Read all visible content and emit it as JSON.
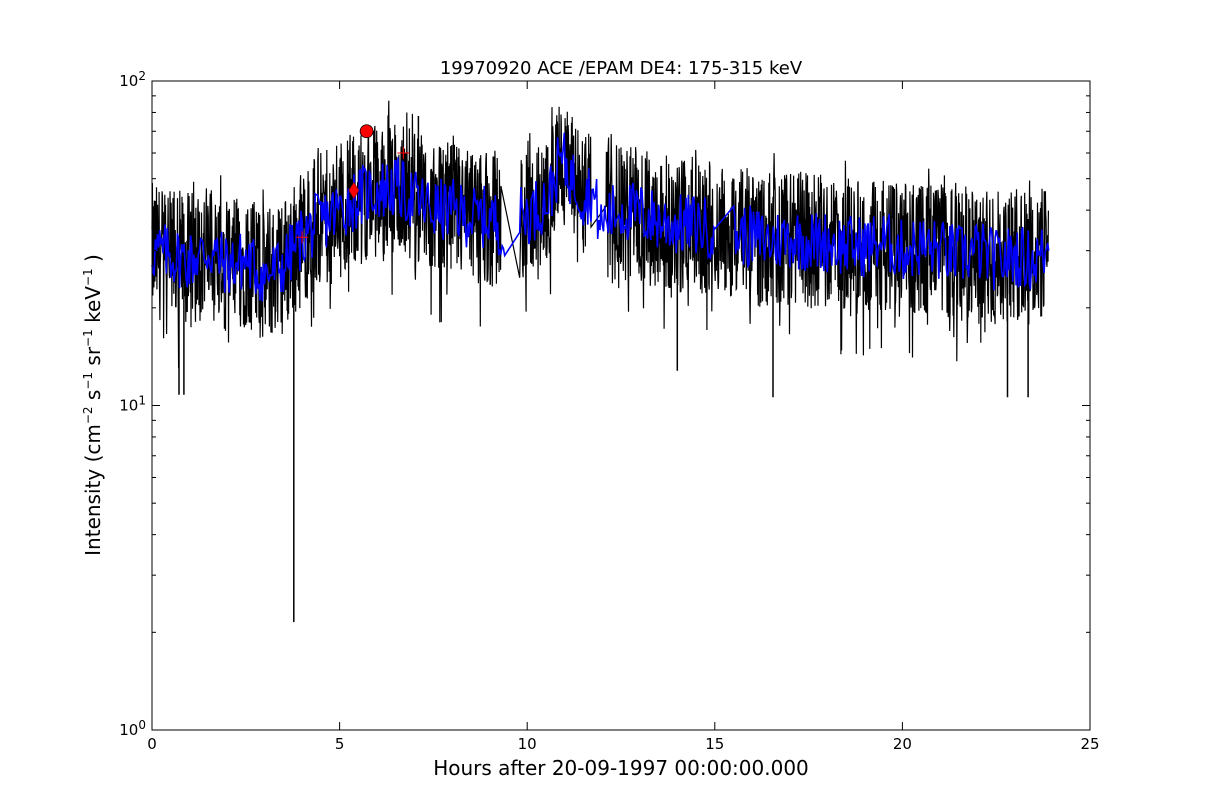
{
  "chart_data": {
    "type": "line",
    "title": "19970920 ACE /EPAM DE4: 175-315 keV",
    "xlabel": "Hours after 20-09-1997 00:00:00.000",
    "ylabel": {
      "prefix": "Intensity (cm",
      "exp1": "−2",
      "part2": " s",
      "exp2": "−1",
      "part3": " sr",
      "exp3": "−1",
      "part4": " keV",
      "exp4": "−1",
      "suffix": " )"
    },
    "xlim": [
      0,
      25
    ],
    "ylim": [
      1,
      100
    ],
    "yscale": "log",
    "grid": false,
    "x_ticks": [
      {
        "value": 0,
        "label": "0"
      },
      {
        "value": 5,
        "label": "5"
      },
      {
        "value": 10,
        "label": "10"
      },
      {
        "value": 15,
        "label": "15"
      },
      {
        "value": 20,
        "label": "20"
      },
      {
        "value": 25,
        "label": "25"
      }
    ],
    "y_ticks": [
      {
        "value": 1,
        "base": "10",
        "exp": "0"
      },
      {
        "value": 10,
        "base": "10",
        "exp": "1"
      },
      {
        "value": 100,
        "base": "10",
        "exp": "2"
      }
    ],
    "series": [
      {
        "role": "raw",
        "color": "#000000",
        "segments": [
          {
            "x_start": 0.0,
            "x_end": 9.3,
            "base": 32,
            "spread": 0.22
          },
          {
            "x_start": 9.8,
            "x_end": 11.7,
            "base": 40,
            "spread": 0.2
          },
          {
            "x_start": 12.1,
            "x_end": 23.9,
            "base": 32,
            "spread": 0.22
          }
        ],
        "spikes": [
          {
            "x": 3.78,
            "y": 2.15
          },
          {
            "x": 0.72,
            "y": 10.8
          },
          {
            "x": 0.85,
            "y": 10.8
          },
          {
            "x": 14.0,
            "y": 12.8
          },
          {
            "x": 16.55,
            "y": 10.6
          },
          {
            "x": 22.8,
            "y": 10.6
          },
          {
            "x": 23.35,
            "y": 10.6
          },
          {
            "x": 7.1,
            "y": 78
          },
          {
            "x": 10.8,
            "y": 75
          }
        ]
      },
      {
        "role": "smoothed",
        "color": "#0000ff",
        "points": [
          [
            0.0,
            30
          ],
          [
            0.5,
            29
          ],
          [
            1.0,
            28
          ],
          [
            1.5,
            30
          ],
          [
            2.0,
            27
          ],
          [
            2.5,
            28
          ],
          [
            3.0,
            25
          ],
          [
            3.5,
            27
          ],
          [
            4.0,
            33
          ],
          [
            4.5,
            37
          ],
          [
            5.0,
            40
          ],
          [
            5.5,
            44
          ],
          [
            6.0,
            46
          ],
          [
            6.5,
            47
          ],
          [
            7.0,
            43
          ],
          [
            7.5,
            40
          ],
          [
            8.0,
            40
          ],
          [
            8.5,
            38
          ],
          [
            9.0,
            38
          ],
          [
            9.3,
            36
          ],
          [
            9.4,
            29
          ],
          [
            9.8,
            38
          ],
          [
            10.2,
            40
          ],
          [
            10.6,
            44
          ],
          [
            10.9,
            58
          ],
          [
            11.2,
            50
          ],
          [
            11.5,
            44
          ],
          [
            11.7,
            46
          ],
          [
            12.0,
            35
          ],
          [
            12.1,
            38
          ],
          [
            12.5,
            40
          ],
          [
            13.0,
            39
          ],
          [
            13.5,
            37
          ],
          [
            14.0,
            36
          ],
          [
            14.5,
            36
          ],
          [
            15.0,
            35
          ],
          [
            15.5,
            34
          ],
          [
            16.0,
            33
          ],
          [
            16.5,
            32
          ],
          [
            17.0,
            33
          ],
          [
            17.5,
            32
          ],
          [
            18.0,
            32
          ],
          [
            18.5,
            31
          ],
          [
            19.0,
            31
          ],
          [
            19.5,
            32
          ],
          [
            20.0,
            30
          ],
          [
            20.5,
            31
          ],
          [
            21.0,
            30
          ],
          [
            21.5,
            29
          ],
          [
            22.0,
            30
          ],
          [
            22.5,
            28
          ],
          [
            23.0,
            29
          ],
          [
            23.5,
            28
          ],
          [
            23.9,
            30
          ]
        ]
      }
    ],
    "markers": [
      {
        "shape": "circle",
        "x": 5.72,
        "y": 70,
        "color": "#ff0000"
      },
      {
        "shape": "diamond",
        "x": 5.38,
        "y": 46,
        "color": "#ff0000"
      },
      {
        "shape": "plus",
        "x": 6.7,
        "y": 60,
        "color": "#ff0000"
      },
      {
        "shape": "plus",
        "x": 4.0,
        "y": 33,
        "color": "#ff0000"
      }
    ]
  }
}
